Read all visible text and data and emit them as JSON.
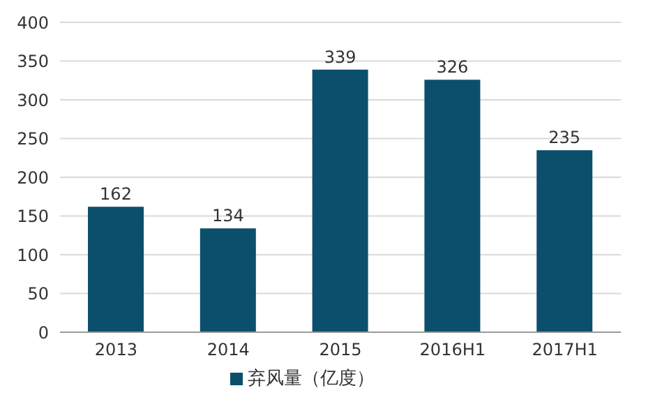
{
  "chart_data": {
    "type": "bar",
    "categories": [
      "2013",
      "2014",
      "2015",
      "2016H1",
      "2017H1"
    ],
    "series": [
      {
        "name": "弃风量（亿度）",
        "color": "#0b4f6c",
        "values": [
          162,
          134,
          339,
          326,
          235
        ]
      }
    ],
    "ylim": [
      0,
      400
    ],
    "yticks": [
      0,
      50,
      100,
      150,
      200,
      250,
      300,
      350,
      400
    ],
    "grid": "y",
    "legend": "bottom",
    "data_labels": true
  }
}
